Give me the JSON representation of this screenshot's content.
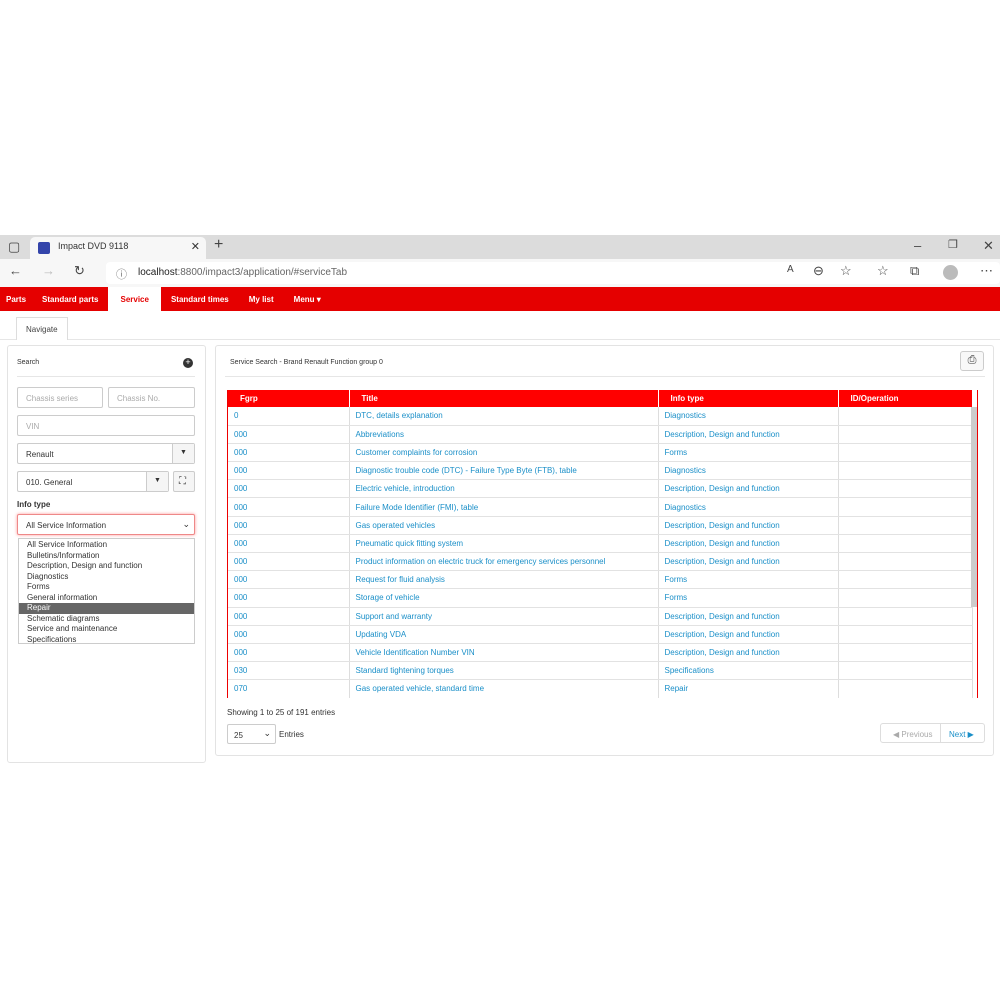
{
  "browser": {
    "tab_title": "Impact DVD 9118",
    "url_host": "localhost",
    "url_rest": ":8800/impact3/application/#serviceTab"
  },
  "nav": [
    {
      "label": "Parts"
    },
    {
      "label": "Standard parts"
    },
    {
      "label": "Service",
      "active": true
    },
    {
      "label": "Standard times"
    },
    {
      "label": "My list"
    },
    {
      "label": "Menu ▾"
    }
  ],
  "subtab": "Navigate",
  "search": {
    "title": "Search",
    "chassis_series_placeholder": "Chassis series",
    "chassis_no_placeholder": "Chassis No.",
    "vin_placeholder": "VIN",
    "brand": "Renault",
    "function_group": "010. General",
    "info_type_label": "Info type",
    "info_type_value": "All Service Information",
    "options": [
      "All Service Information",
      "Bulletins/Information",
      "Description, Design and function",
      "Diagnostics",
      "Forms",
      "General information",
      "Repair",
      "Schematic diagrams",
      "Service and maintenance",
      "Specifications"
    ],
    "highlighted": "Repair"
  },
  "results": {
    "title": "Service Search - Brand Renault Function group 0",
    "columns": [
      "Fgrp",
      "Title",
      "Info type",
      "ID/Operation"
    ],
    "rows": [
      [
        "0",
        "DTC, details explanation",
        "Diagnostics",
        ""
      ],
      [
        "000",
        "Abbreviations",
        "Description, Design and function",
        ""
      ],
      [
        "000",
        "Customer complaints for corrosion",
        "Forms",
        ""
      ],
      [
        "000",
        "Diagnostic trouble code (DTC) - Failure Type Byte (FTB), table",
        "Diagnostics",
        ""
      ],
      [
        "000",
        "Electric vehicle, introduction",
        "Description, Design and function",
        ""
      ],
      [
        "000",
        "Failure Mode Identifier (FMI), table",
        "Diagnostics",
        ""
      ],
      [
        "000",
        "Gas operated vehicles",
        "Description, Design and function",
        ""
      ],
      [
        "000",
        "Pneumatic quick fitting system",
        "Description, Design and function",
        ""
      ],
      [
        "000",
        "Product information on electric truck for emergency services personnel",
        "Description, Design and function",
        ""
      ],
      [
        "000",
        "Request for fluid analysis",
        "Forms",
        ""
      ],
      [
        "000",
        "Storage of vehicle",
        "Forms",
        ""
      ],
      [
        "000",
        "Support and warranty",
        "Description, Design and function",
        ""
      ],
      [
        "000",
        "Updating VDA",
        "Description, Design and function",
        ""
      ],
      [
        "000",
        "Vehicle Identification Number VIN",
        "Description, Design and function",
        ""
      ],
      [
        "030",
        "Standard tightening torques",
        "Specifications",
        ""
      ],
      [
        "070",
        "Gas operated vehicle, standard time",
        "Repair",
        ""
      ]
    ],
    "showing": "Showing 1 to 25 of 191 entries",
    "page_size": "25",
    "entries_label": "Entries",
    "previous": "Previous",
    "next": "Next"
  },
  "colors": {
    "brand_red": "#e50000",
    "link": "#1a8fc8"
  }
}
